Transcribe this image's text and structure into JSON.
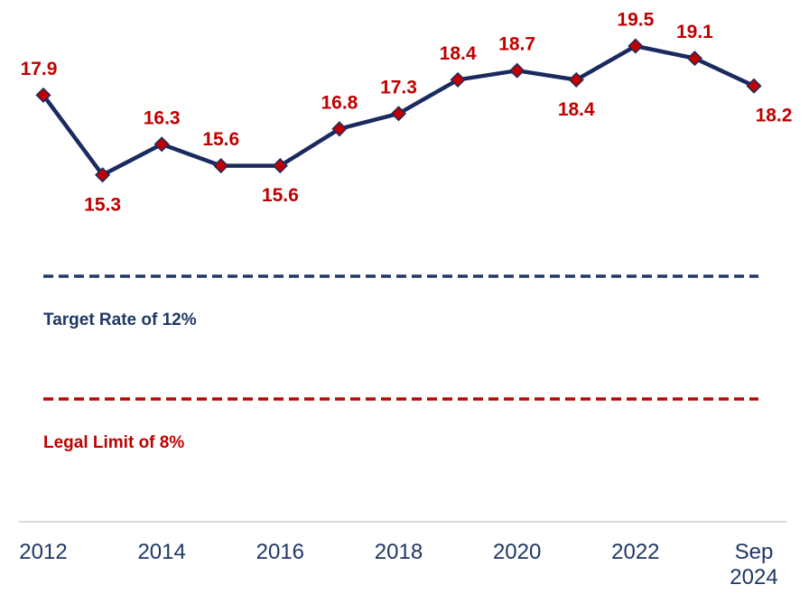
{
  "chart_data": {
    "type": "line",
    "categories": [
      "2012",
      null,
      "2014",
      null,
      "2016",
      null,
      "2018",
      null,
      "2020",
      null,
      "2022",
      null,
      "Sep 2024"
    ],
    "values": [
      17.9,
      15.3,
      16.3,
      15.6,
      15.6,
      16.8,
      17.3,
      18.4,
      18.7,
      18.4,
      19.5,
      19.1,
      18.2
    ],
    "color": "#1b2a5e",
    "marker_color": "#c00000",
    "label_color": "#c00000",
    "ylim": [
      4,
      20
    ],
    "reference_lines": [
      {
        "value": 12,
        "label": "Target Rate of 12%",
        "color": "#1f3864"
      },
      {
        "value": 8,
        "label": "Legal Limit of 8%",
        "color": "#c00000"
      }
    ]
  }
}
